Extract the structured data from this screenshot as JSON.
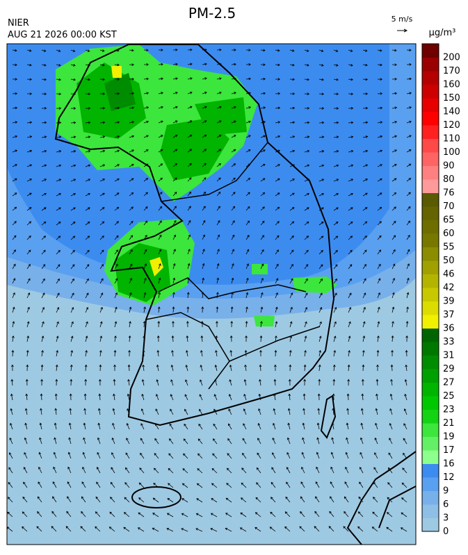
{
  "header": {
    "title": "PM-2.5",
    "source": "NIER",
    "timestamp": "AUG 21 2026 00:00 KST",
    "wind_scale": "5 m/s"
  },
  "colorbar": {
    "unit": "µg/m³",
    "levels": [
      0,
      3,
      6,
      9,
      12,
      16,
      17,
      19,
      21,
      23,
      25,
      27,
      29,
      31,
      33,
      36,
      37,
      39,
      42,
      46,
      50,
      55,
      60,
      65,
      70,
      76,
      80,
      90,
      100,
      110,
      120,
      140,
      150,
      160,
      170,
      200
    ],
    "colors": [
      "#9ec9e2",
      "#8ebfe6",
      "#78b0ea",
      "#5aa0f0",
      "#3c8cf0",
      "#8cff8c",
      "#64f064",
      "#3ce63c",
      "#14d214",
      "#00c800",
      "#00b400",
      "#00a000",
      "#008c00",
      "#007800",
      "#006400",
      "#f0f000",
      "#dcdc00",
      "#c8c800",
      "#b4b400",
      "#a0a000",
      "#8c8c00",
      "#787800",
      "#6e6e00",
      "#646400",
      "#5a5a00",
      "#ff9a9a",
      "#ff8080",
      "#ff6464",
      "#ff4848",
      "#ff2020",
      "#ff0000",
      "#e60000",
      "#cc0000",
      "#b40000",
      "#9a0000",
      "#6e0000"
    ]
  }
}
